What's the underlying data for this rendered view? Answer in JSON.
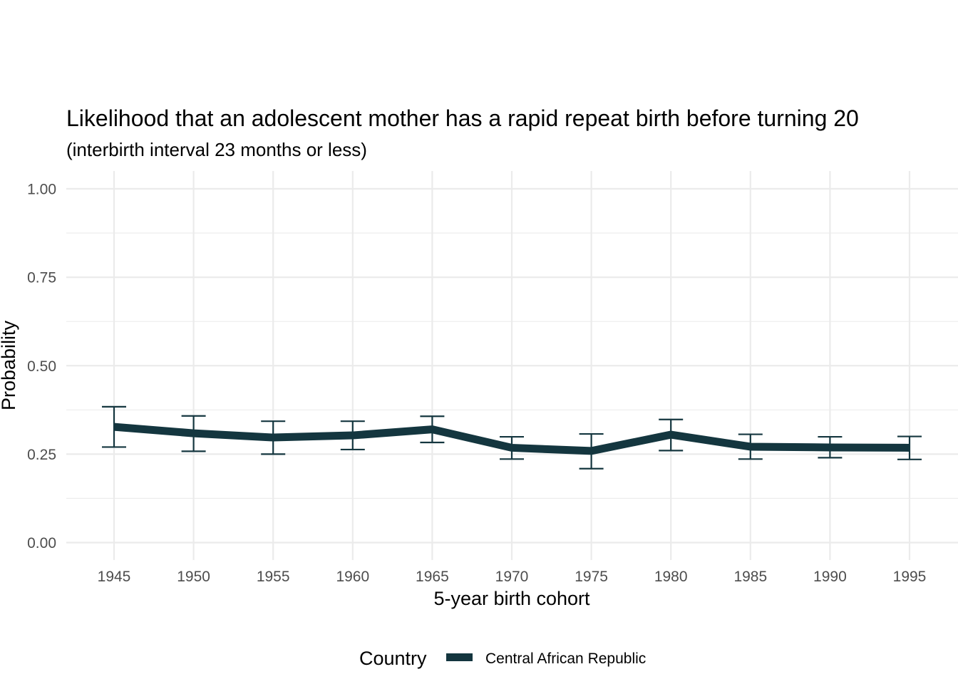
{
  "chart_data": {
    "type": "line",
    "title": "Likelihood that an adolescent mother has a rapid repeat birth before turning 20",
    "subtitle": "(interbirth interval 23 months or less)",
    "xlabel": "5-year birth cohort",
    "ylabel": "Probability",
    "x": [
      1945,
      1950,
      1955,
      1960,
      1965,
      1970,
      1975,
      1980,
      1985,
      1990,
      1995
    ],
    "x_tick_labels": [
      "1945",
      "1950",
      "1955",
      "1960",
      "1965",
      "1970",
      "1975",
      "1980",
      "1985",
      "1990",
      "1995"
    ],
    "y_ticks": [
      0,
      0.25,
      0.5,
      0.75,
      1
    ],
    "y_tick_labels": [
      "0.00",
      "0.25",
      "0.50",
      "0.75",
      "1.00"
    ],
    "ylim": [
      0,
      1
    ],
    "xlim": [
      1945,
      1995
    ],
    "grid": true,
    "legend": {
      "title": "Country",
      "position": "bottom"
    },
    "series": [
      {
        "name": "Central African Republic",
        "color": "#14363f",
        "values": [
          0.327,
          0.309,
          0.297,
          0.303,
          0.32,
          0.268,
          0.259,
          0.305,
          0.271,
          0.269,
          0.268
        ],
        "lower": [
          0.27,
          0.258,
          0.25,
          0.263,
          0.283,
          0.236,
          0.209,
          0.26,
          0.236,
          0.24,
          0.235
        ],
        "upper": [
          0.384,
          0.358,
          0.343,
          0.343,
          0.357,
          0.299,
          0.307,
          0.348,
          0.306,
          0.299,
          0.3
        ]
      }
    ]
  }
}
